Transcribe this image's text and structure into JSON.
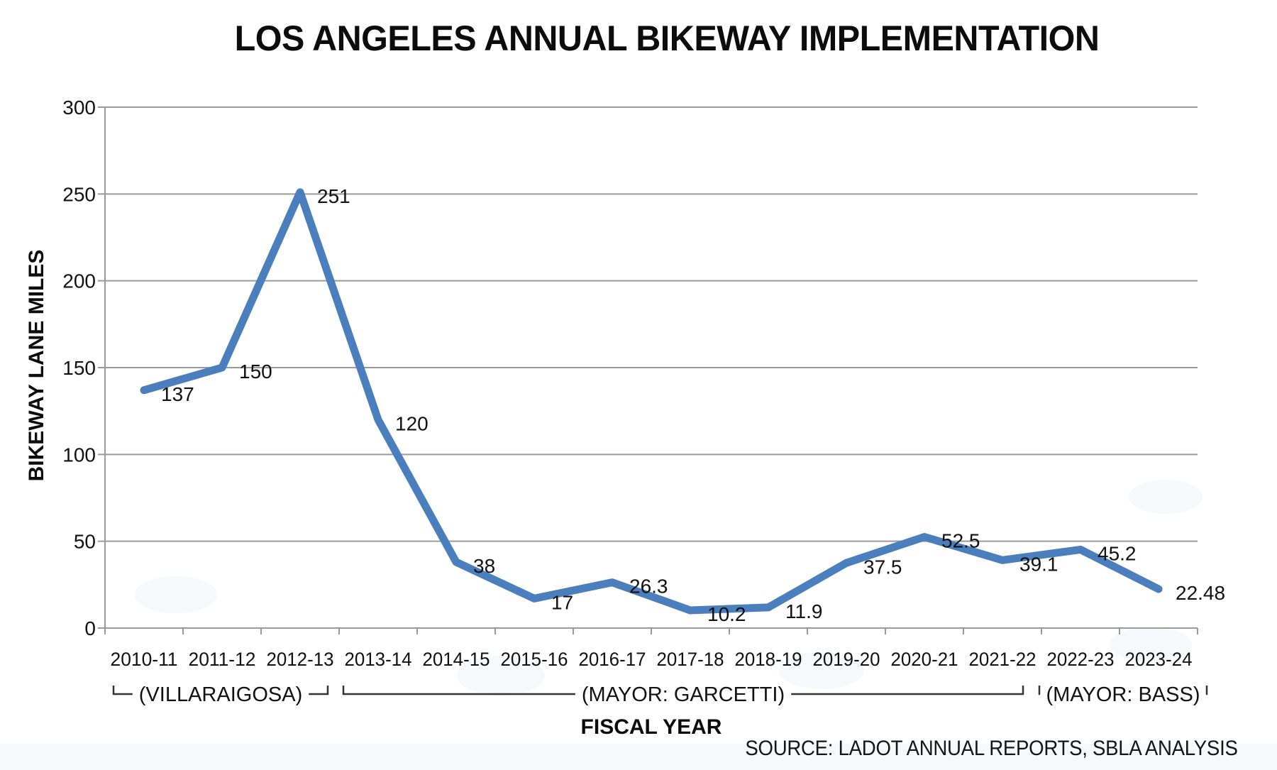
{
  "chart_data": {
    "type": "line",
    "title": "LOS ANGELES ANNUAL BIKEWAY IMPLEMENTATION",
    "xlabel": "FISCAL YEAR",
    "ylabel": "BIKEWAY LANE MILES",
    "source_note": "SOURCE: LADOT ANNUAL REPORTS, SBLA ANALYSIS",
    "categories": [
      "2010-11",
      "2011-12",
      "2012-13",
      "2013-14",
      "2014-15",
      "2015-16",
      "2016-17",
      "2017-18",
      "2018-19",
      "2019-20",
      "2020-21",
      "2021-22",
      "2022-23",
      "2023-24"
    ],
    "values": [
      137,
      150,
      251,
      120,
      38,
      17,
      26.3,
      10.2,
      11.9,
      37.5,
      52.5,
      39.1,
      45.2,
      22.48
    ],
    "ylim": [
      0,
      300
    ],
    "yticks": [
      0,
      50,
      100,
      150,
      200,
      250,
      300
    ],
    "grid": true,
    "legend": "none",
    "line_color": "#4a7ebc",
    "gridline_color": "#9a9a9a",
    "bracket_color": "#333333",
    "mayor_annotations": [
      {
        "label": "(VILLARAIGOSA)",
        "start": "2010-11",
        "end": "2012-13"
      },
      {
        "label": "(MAYOR: GARCETTI)",
        "start": "2013-14",
        "end": "2021-22"
      },
      {
        "label": "(MAYOR: BASS)",
        "start": "2022-23",
        "end": "2023-24"
      }
    ]
  }
}
